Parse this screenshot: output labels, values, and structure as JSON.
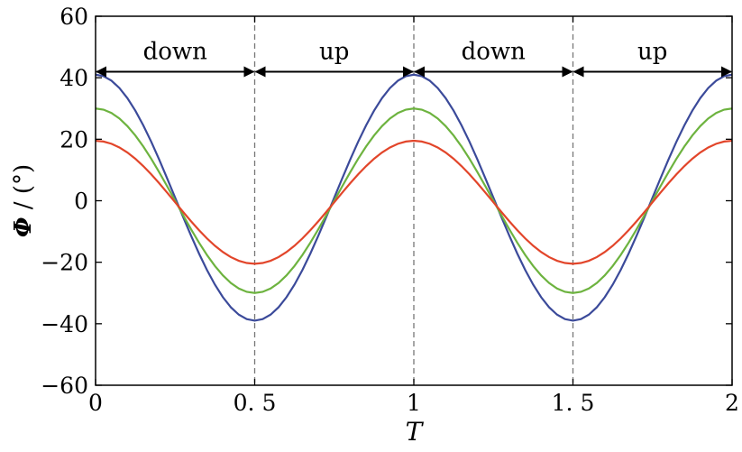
{
  "chart_data": {
    "type": "line",
    "xlabel": "T",
    "ylabel_symbol": "Φ",
    "ylabel_unit": " / (°)",
    "xlim": [
      0,
      2
    ],
    "ylim": [
      -60,
      60
    ],
    "x_ticks": [
      {
        "value": 0,
        "label": "0"
      },
      {
        "value": 0.5,
        "label": "0. 5"
      },
      {
        "value": 1,
        "label": "1"
      },
      {
        "value": 1.5,
        "label": "1. 5"
      },
      {
        "value": 2,
        "label": "2"
      }
    ],
    "y_ticks": [
      {
        "value": 60,
        "label": "60"
      },
      {
        "value": 40,
        "label": "40"
      },
      {
        "value": 20,
        "label": "20"
      },
      {
        "value": 0,
        "label": "0"
      },
      {
        "value": -20,
        "label": "−20"
      },
      {
        "value": -40,
        "label": "−40"
      },
      {
        "value": -60,
        "label": "−60"
      }
    ],
    "grid": false,
    "vlines": [
      0.5,
      1,
      1.5
    ],
    "phases": [
      {
        "label": "down",
        "from": 0,
        "to": 0.5
      },
      {
        "label": "up",
        "from": 0.5,
        "to": 1
      },
      {
        "label": "down",
        "from": 1,
        "to": 1.5
      },
      {
        "label": "up",
        "from": 1.5,
        "to": 2
      }
    ],
    "phase_arrow_y": 49,
    "series": [
      {
        "color": "#3b4a9a",
        "amplitude": 40,
        "offset": 1
      },
      {
        "color": "#6db33f",
        "amplitude": 30,
        "offset": 0
      },
      {
        "color": "#e2452a",
        "amplitude": 20,
        "offset": -0.5
      }
    ],
    "curve_samples": 81
  }
}
